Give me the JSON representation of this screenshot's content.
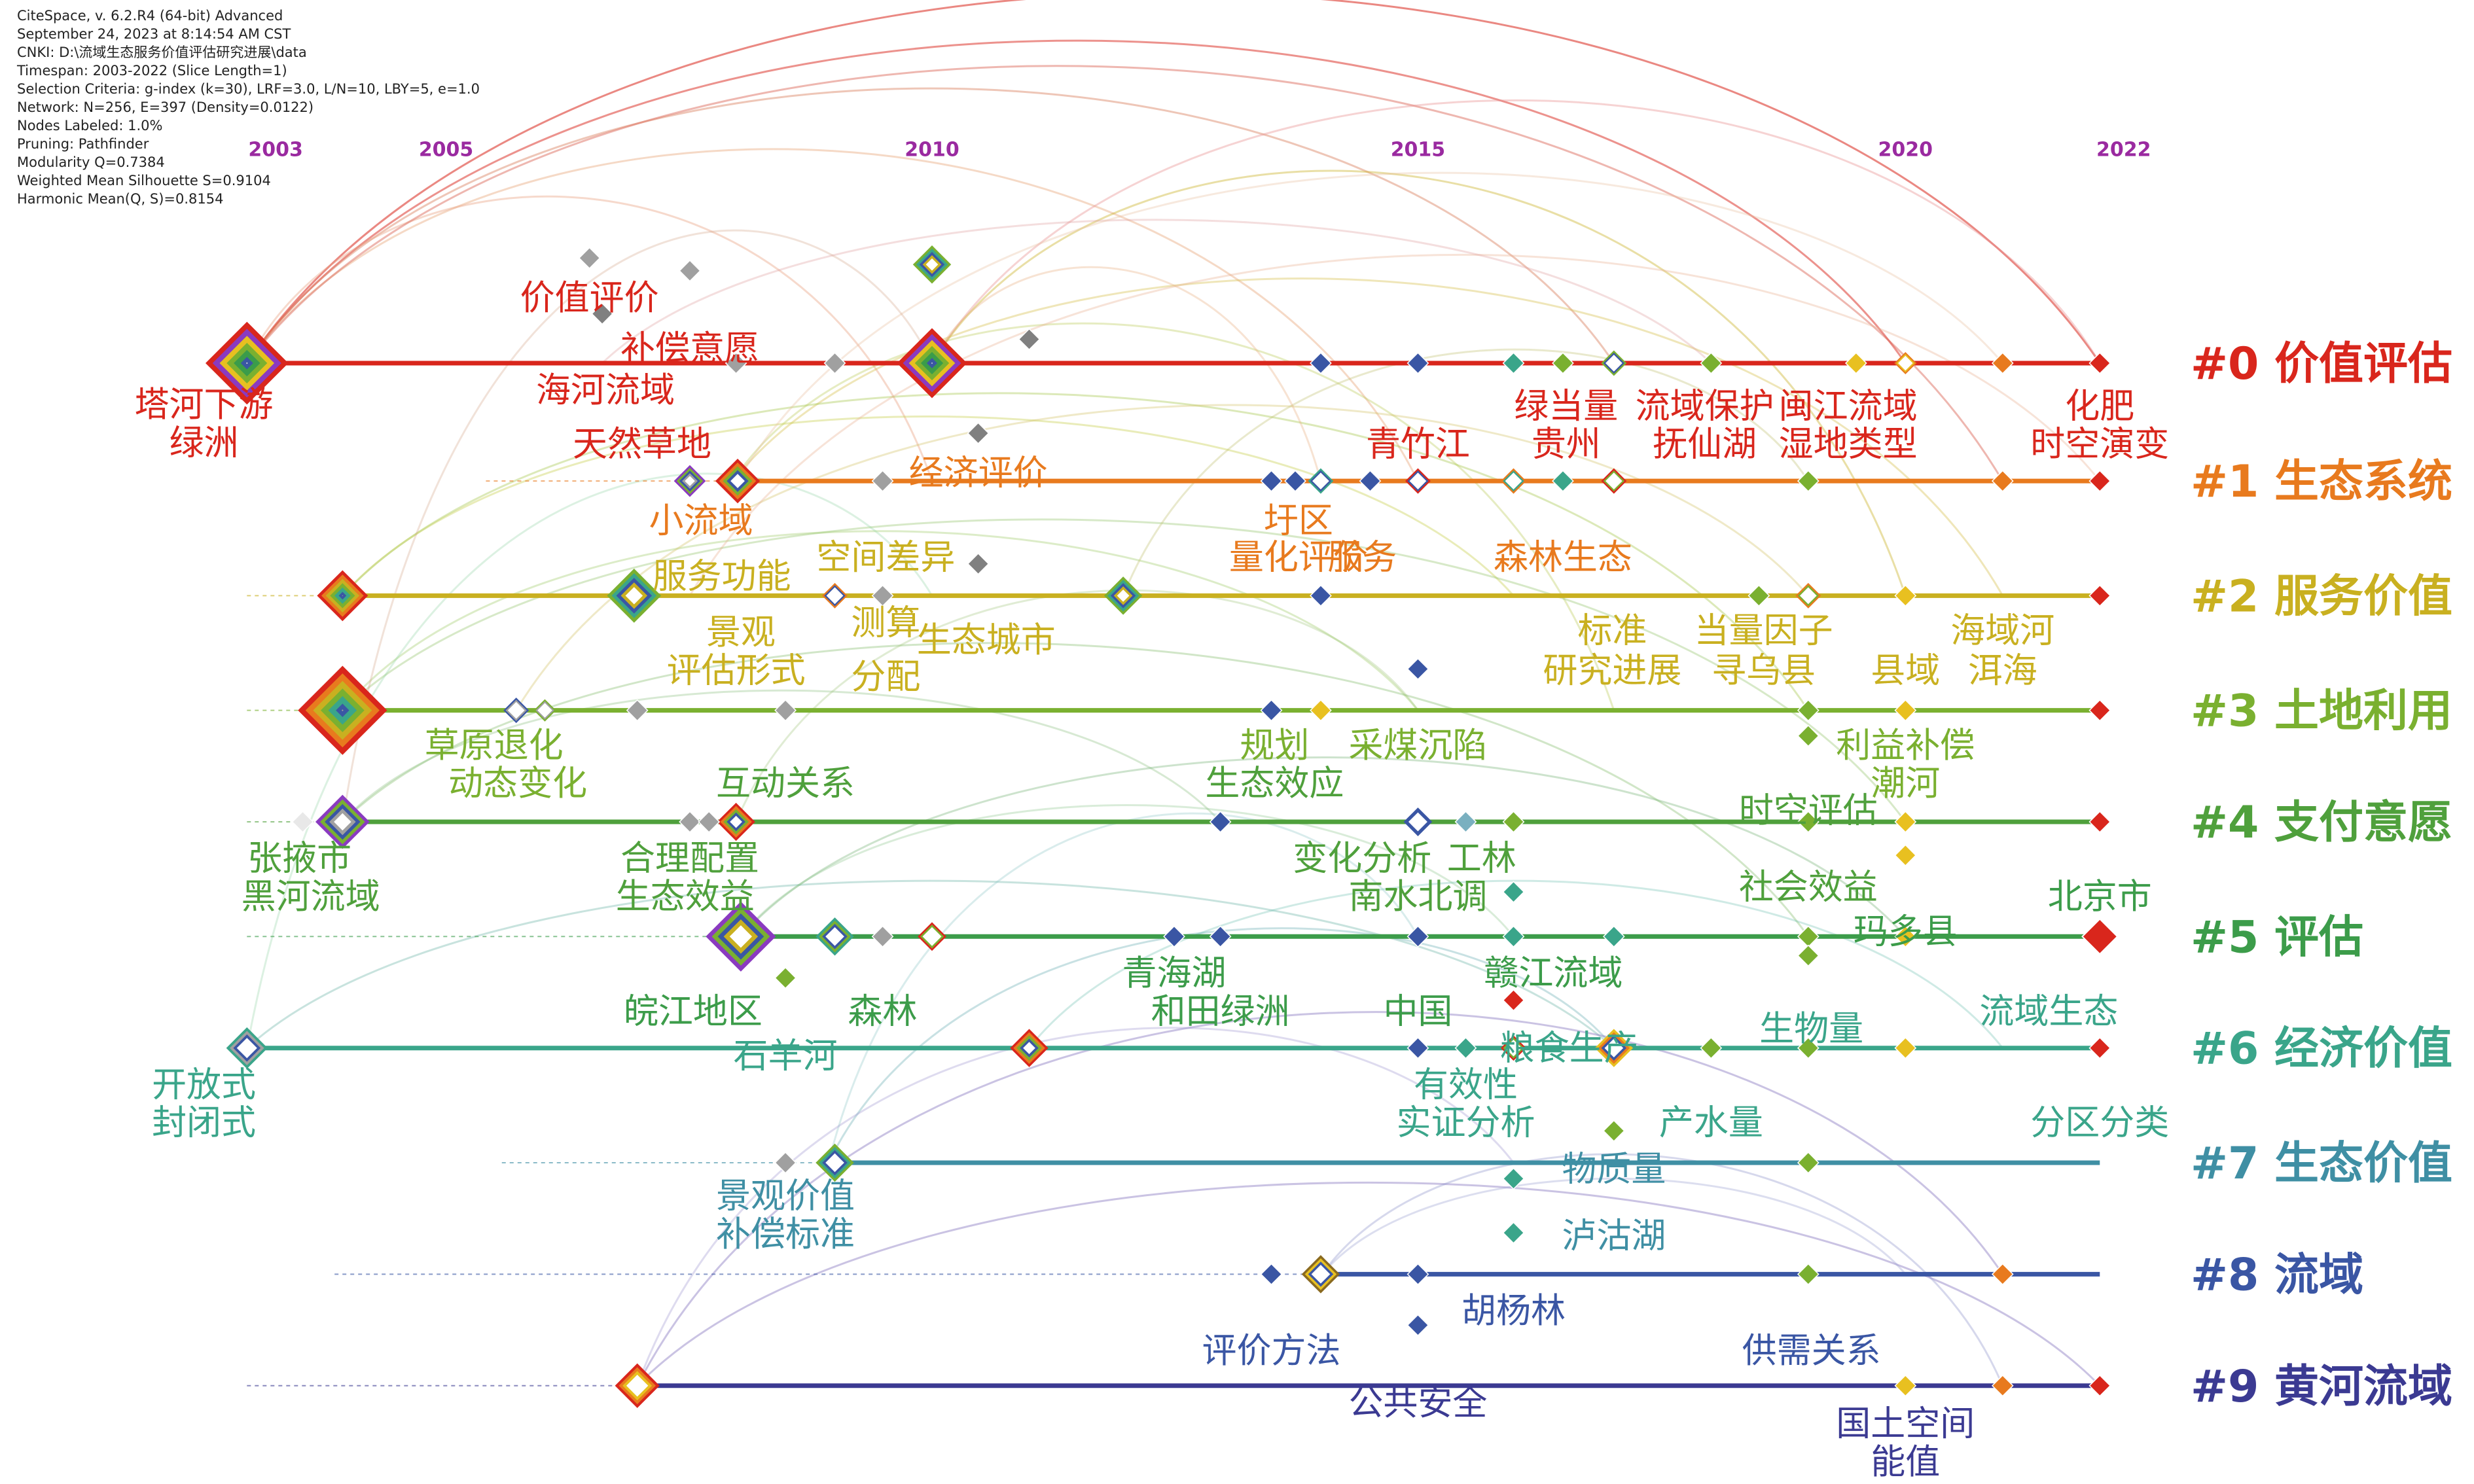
{
  "header": {
    "lines": [
      "CiteSpace, v. 6.2.R4 (64-bit) Advanced",
      "September 24, 2023 at 8:14:54 AM CST",
      "CNKI: D:\\流域生态服务价值评估研究进展\\data",
      "Timespan: 2003-2022 (Slice Length=1)",
      "Selection Criteria: g-index (k=30), LRF=3.0, L/N=10, LBY=5, e=1.0",
      "Network: N=256, E=397 (Density=0.0122)",
      "Nodes Labeled: 1.0%",
      "Pruning: Pathfinder",
      "Modularity Q=0.7384",
      "Weighted Mean Silhouette S=0.9104",
      "Harmonic Mean(Q, S)=0.8154"
    ]
  },
  "timeline": {
    "years": [
      "2003",
      "2005",
      "2010",
      "2015",
      "2020",
      "2022"
    ],
    "year_color": "#9a2aa0"
  },
  "clusters": [
    {
      "label": "#0 价值评估",
      "color": "#d9261c"
    },
    {
      "label": "#1 生态系统",
      "color": "#e87a1e"
    },
    {
      "label": "#2 服务价值",
      "color": "#c9b020"
    },
    {
      "label": "#3 土地利用",
      "color": "#7ab030"
    },
    {
      "label": "#4 支付意愿",
      "color": "#4fa03c"
    },
    {
      "label": "#5 评估",
      "color": "#3c9c4a"
    },
    {
      "label": "#6 经济价值",
      "color": "#3aa58a"
    },
    {
      "label": "#7 生态价值",
      "color": "#3f8fa4"
    },
    {
      "label": "#8 流域",
      "color": "#3a56a4"
    },
    {
      "label": "#9 黄河流域",
      "color": "#3b3a92"
    }
  ],
  "keywords": [
    {
      "text": "塔河下游",
      "cluster": 0
    },
    {
      "text": "绿洲",
      "cluster": 0
    },
    {
      "text": "价值评价",
      "cluster": 0
    },
    {
      "text": "补偿意愿",
      "cluster": 0
    },
    {
      "text": "海河流域",
      "cluster": 0
    },
    {
      "text": "天然草地",
      "cluster": 0
    },
    {
      "text": "绿当量",
      "cluster": 0
    },
    {
      "text": "贵州",
      "cluster": 0
    },
    {
      "text": "流域保护",
      "cluster": 0
    },
    {
      "text": "闽江流域",
      "cluster": 0
    },
    {
      "text": "抚仙湖",
      "cluster": 0
    },
    {
      "text": "湿地类型",
      "cluster": 0
    },
    {
      "text": "化肥",
      "cluster": 0
    },
    {
      "text": "时空演变",
      "cluster": 0
    },
    {
      "text": "青竹江",
      "cluster": 0
    },
    {
      "text": "经济评价",
      "cluster": 1
    },
    {
      "text": "小流域",
      "cluster": 1
    },
    {
      "text": "圩区",
      "cluster": 1
    },
    {
      "text": "量化评价",
      "cluster": 1
    },
    {
      "text": "服务",
      "cluster": 1
    },
    {
      "text": "森林生态",
      "cluster": 1
    },
    {
      "text": "服务功能",
      "cluster": 2
    },
    {
      "text": "空间差异",
      "cluster": 2
    },
    {
      "text": "景观",
      "cluster": 2
    },
    {
      "text": "测算",
      "cluster": 2
    },
    {
      "text": "生态城市",
      "cluster": 2
    },
    {
      "text": "评估形式",
      "cluster": 2
    },
    {
      "text": "分配",
      "cluster": 2
    },
    {
      "text": "标准",
      "cluster": 2
    },
    {
      "text": "当量因子",
      "cluster": 2
    },
    {
      "text": "研究进展",
      "cluster": 2
    },
    {
      "text": "寻乌县",
      "cluster": 2
    },
    {
      "text": "县域",
      "cluster": 2
    },
    {
      "text": "海域河",
      "cluster": 2
    },
    {
      "text": "洱海",
      "cluster": 2
    },
    {
      "text": "草原退化",
      "cluster": 3
    },
    {
      "text": "动态变化",
      "cluster": 3
    },
    {
      "text": "规划",
      "cluster": 3
    },
    {
      "text": "采煤沉陷",
      "cluster": 3
    },
    {
      "text": "利益补偿",
      "cluster": 3
    },
    {
      "text": "潮河",
      "cluster": 3
    },
    {
      "text": "互动关系",
      "cluster": 4
    },
    {
      "text": "生态效应",
      "cluster": 4
    },
    {
      "text": "时空评估",
      "cluster": 4
    },
    {
      "text": "张掖市",
      "cluster": 4
    },
    {
      "text": "黑河流域",
      "cluster": 4
    },
    {
      "text": "合理配置",
      "cluster": 4
    },
    {
      "text": "生态效益",
      "cluster": 4
    },
    {
      "text": "变化分析",
      "cluster": 4
    },
    {
      "text": "工林",
      "cluster": 4
    },
    {
      "text": "南水北调",
      "cluster": 4
    },
    {
      "text": "社会效益",
      "cluster": 4
    },
    {
      "text": "北京市",
      "cluster": 5
    },
    {
      "text": "玛多县",
      "cluster": 5
    },
    {
      "text": "青海湖",
      "cluster": 5
    },
    {
      "text": "和田绿洲",
      "cluster": 5
    },
    {
      "text": "赣江流域",
      "cluster": 5
    },
    {
      "text": "皖江地区",
      "cluster": 5
    },
    {
      "text": "森林",
      "cluster": 5
    },
    {
      "text": "中国",
      "cluster": 5
    },
    {
      "text": "石羊河",
      "cluster": 6
    },
    {
      "text": "开放式",
      "cluster": 6
    },
    {
      "text": "封闭式",
      "cluster": 6
    },
    {
      "text": "粮食生产",
      "cluster": 6
    },
    {
      "text": "生物量",
      "cluster": 6
    },
    {
      "text": "流域生态",
      "cluster": 6
    },
    {
      "text": "有效性",
      "cluster": 6
    },
    {
      "text": "实证分析",
      "cluster": 6
    },
    {
      "text": "产水量",
      "cluster": 6
    },
    {
      "text": "分区分类",
      "cluster": 6
    },
    {
      "text": "物质量",
      "cluster": 7
    },
    {
      "text": "景观价值",
      "cluster": 7
    },
    {
      "text": "补偿标准",
      "cluster": 7
    },
    {
      "text": "泸沽湖",
      "cluster": 7
    },
    {
      "text": "胡杨林",
      "cluster": 8
    },
    {
      "text": "评价方法",
      "cluster": 8
    },
    {
      "text": "供需关系",
      "cluster": 8
    },
    {
      "text": "公共安全",
      "cluster": 9
    },
    {
      "text": "国土空间",
      "cluster": 9
    },
    {
      "text": "能值",
      "cluster": 9
    }
  ]
}
